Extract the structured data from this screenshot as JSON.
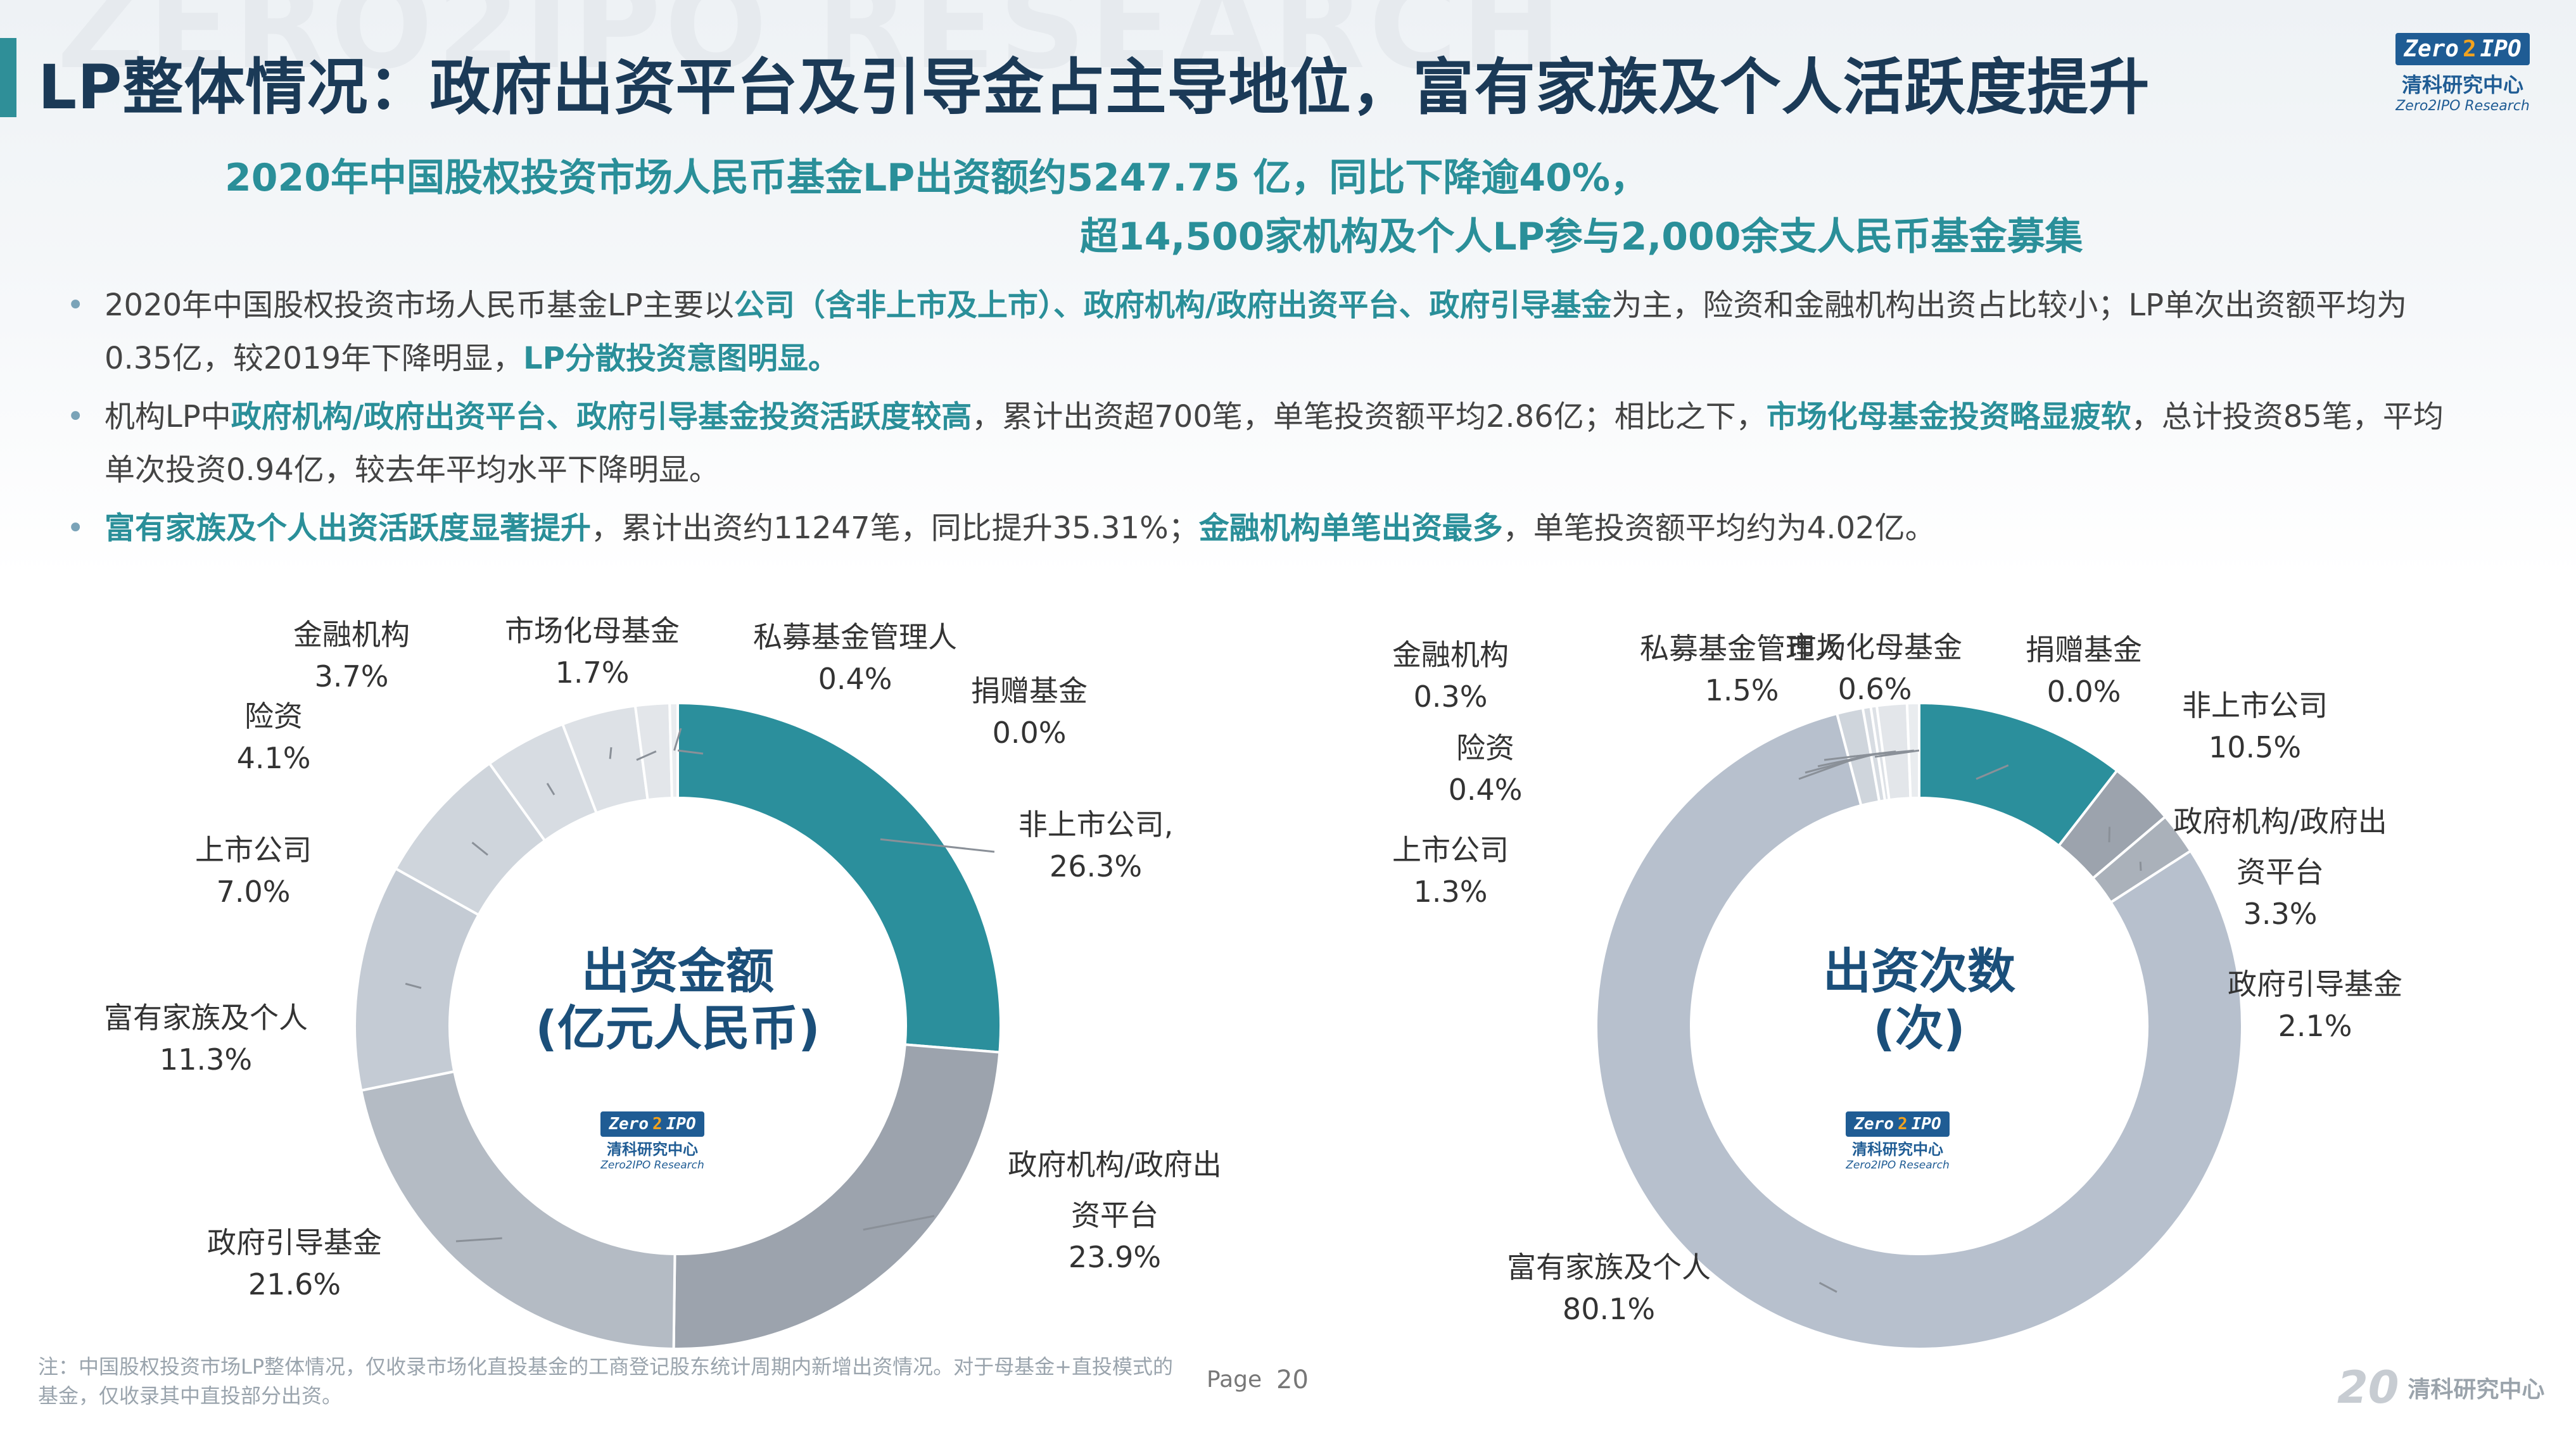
{
  "watermark": "ZERO2IPO RESEARCH",
  "title": "LP整体情况：政府出资平台及引导金占主导地位，富有家族及个人活跃度提升",
  "logo": {
    "badge_left": "Zero",
    "badge_two": "2",
    "badge_right": "IPO",
    "cn": "清科研究中心",
    "en": "Zero2IPO Research"
  },
  "headline": {
    "line1": "2020年中国股权投资市场人民币基金LP出资额约5247.75 亿，同比下降逾40%，",
    "line2": "超14,500家机构及个人LP参与2,000余支人民币基金募集"
  },
  "bullets": [
    {
      "parts": [
        {
          "t": "2020年中国股权投资市场人民币基金LP主要以",
          "h": false
        },
        {
          "t": "公司（含非上市及上市）、政府机构/政府出资平台、政府引导基金",
          "h": true
        },
        {
          "t": "为主，险资和金融机构出资占比较小；LP单次出资额平均为0.35亿，较2019年下降明显，",
          "h": false
        },
        {
          "t": "LP分散投资意图明显。",
          "h": true
        }
      ]
    },
    {
      "parts": [
        {
          "t": "机构LP中",
          "h": false
        },
        {
          "t": "政府机构/政府出资平台、政府引导基金投资活跃度较高",
          "h": true
        },
        {
          "t": "，累计出资超700笔，单笔投资额平均2.86亿；相比之下，",
          "h": false
        },
        {
          "t": "市场化母基金投资略显疲软",
          "h": true
        },
        {
          "t": "，总计投资85笔，平均单次投资0.94亿，较去年平均水平下降明显。",
          "h": false
        }
      ]
    },
    {
      "parts": [
        {
          "t": "富有家族及个人出资活跃度显著提升",
          "h": true
        },
        {
          "t": "，累计出资约11247笔，同比提升35.31%；",
          "h": false
        },
        {
          "t": "金融机构单笔出资最多",
          "h": true
        },
        {
          "t": "，单笔投资额平均约为4.02亿。",
          "h": false
        }
      ]
    }
  ],
  "bullet_symbol": "•",
  "chart_data": [
    {
      "type": "pie",
      "title": "出资金额",
      "subtitle": "(亿元人民币)",
      "categories": [
        "非上市公司",
        "政府机构/政府出资平台",
        "政府引导基金",
        "富有家族及个人",
        "上市公司",
        "险资",
        "金融机构",
        "市场化母基金",
        "私募基金管理人",
        "捐赠基金"
      ],
      "values": [
        26.3,
        23.9,
        21.6,
        11.3,
        7.0,
        4.1,
        3.7,
        1.7,
        0.4,
        0.0
      ],
      "labels": [
        {
          "name": "非上市公司,",
          "value": "26.3%"
        },
        {
          "name": "政府机构/政府出\n资平台",
          "value": "23.9%"
        },
        {
          "name": "政府引导基金",
          "value": "21.6%"
        },
        {
          "name": "富有家族及个人",
          "value": "11.3%"
        },
        {
          "name": "上市公司",
          "value": "7.0%"
        },
        {
          "name": "险资",
          "value": "4.1%"
        },
        {
          "name": "金融机构",
          "value": "3.7%"
        },
        {
          "name": "市场化母基金",
          "value": "1.7%"
        },
        {
          "name": "私募基金管理人",
          "value": "0.4%"
        },
        {
          "name": "捐赠基金",
          "value": "0.0%"
        }
      ],
      "colors": [
        "#2b8f9c",
        "#9ca3ad",
        "#b4bbc4",
        "#c4cbd4",
        "#cfd5dc",
        "#d7dce2",
        "#dde1e6",
        "#e3e6ea",
        "#e9ecef",
        "#eff1f3"
      ]
    },
    {
      "type": "pie",
      "title": "出资次数",
      "subtitle": "(次)",
      "categories": [
        "非上市公司",
        "政府机构/政府出资平台",
        "政府引导基金",
        "富有家族及个人",
        "上市公司",
        "险资",
        "金融机构",
        "私募基金管理人",
        "市场化母基金",
        "捐赠基金"
      ],
      "values": [
        10.5,
        3.3,
        2.1,
        80.1,
        1.3,
        0.4,
        0.3,
        1.5,
        0.6,
        0.0
      ],
      "labels": [
        {
          "name": "非上市公司",
          "value": "10.5%"
        },
        {
          "name": "政府机构/政府出\n资平台",
          "value": "3.3%"
        },
        {
          "name": "政府引导基金",
          "value": "2.1%"
        },
        {
          "name": "富有家族及个人",
          "value": "80.1%"
        },
        {
          "name": "上市公司",
          "value": "1.3%"
        },
        {
          "name": "险资",
          "value": "0.4%"
        },
        {
          "name": "金融机构",
          "value": "0.3%"
        },
        {
          "name": "私募基金管理人",
          "value": "1.5%"
        },
        {
          "name": "市场化母基金",
          "value": "0.6%"
        },
        {
          "name": "捐赠基金",
          "value": "0.0%"
        }
      ],
      "colors": [
        "#2b8f9c",
        "#9ca3ad",
        "#aab1ba",
        "#b7c0cd",
        "#cfd5dc",
        "#d7dce2",
        "#dde1e6",
        "#e3e6ea",
        "#e9ecef",
        "#eff1f3"
      ]
    }
  ],
  "footer": {
    "note": "注：中国股权投资市场LP整体情况，仅收录市场化直投基金的工商登记股东统计周期内新增出资情况。对于母基金+直投模式的基金，仅收录其中直投部分出资。",
    "page_label": "Page",
    "page_number": "20",
    "bottom_logo_num": "20",
    "bottom_logo_cn": "清科研究中心"
  }
}
